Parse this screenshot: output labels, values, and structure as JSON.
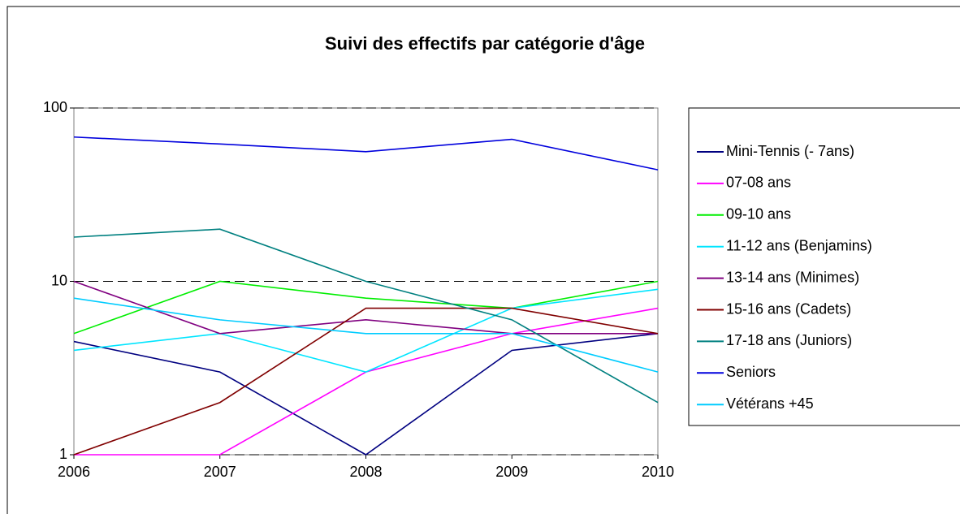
{
  "chart_data": {
    "type": "line",
    "title": "Suivi des effectifs par catégorie d'âge",
    "categories": [
      "2006",
      "2007",
      "2008",
      "2009",
      "2010"
    ],
    "ylim": [
      1,
      100
    ],
    "yticks": [
      1,
      10,
      100
    ],
    "log_scale": true,
    "grid": true,
    "legend": "right",
    "series": [
      {
        "name": "Mini-Tennis (- 7ans)",
        "color": "#000080",
        "values": [
          4.5,
          3,
          1,
          4,
          5
        ]
      },
      {
        "name": "07-08 ans",
        "color": "#ff00ff",
        "values": [
          1,
          1,
          3,
          5,
          7
        ]
      },
      {
        "name": "09-10 ans",
        "color": "#00ee00",
        "values": [
          5,
          10,
          8,
          7,
          10
        ]
      },
      {
        "name": "11-12 ans (Benjamins)",
        "color": "#00e5ff",
        "values": [
          4,
          5,
          3,
          7,
          9
        ]
      },
      {
        "name": "13-14 ans (Minimes)",
        "color": "#800080",
        "values": [
          10,
          5,
          6,
          5,
          5
        ]
      },
      {
        "name": "15-16 ans (Cadets)",
        "color": "#800000",
        "values": [
          1,
          2,
          7,
          7,
          5
        ]
      },
      {
        "name": "17-18 ans (Juniors)",
        "color": "#008080",
        "values": [
          18,
          20,
          10,
          6,
          2
        ]
      },
      {
        "name": "Seniors",
        "color": "#0000dd",
        "values": [
          68,
          62,
          56,
          66,
          44
        ]
      },
      {
        "name": "Vétérans +45",
        "color": "#00ccff",
        "values": [
          8,
          6,
          5,
          5,
          3
        ]
      }
    ]
  }
}
